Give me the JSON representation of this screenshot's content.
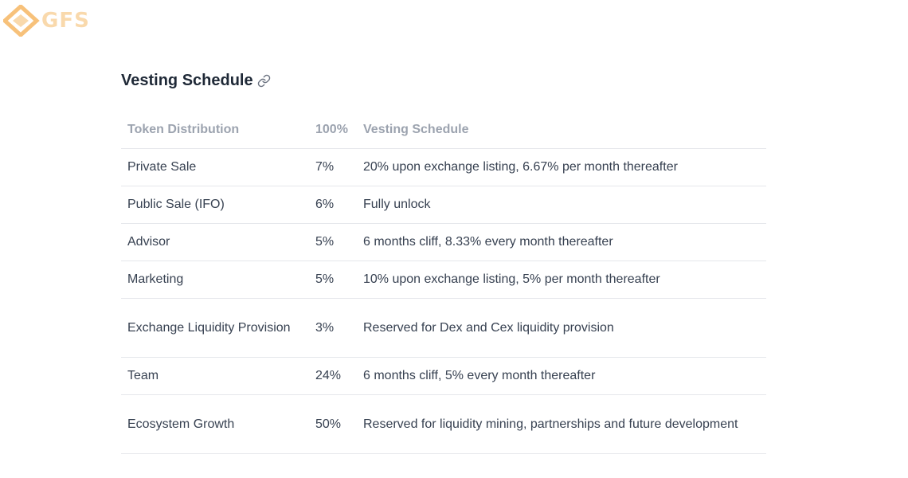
{
  "logo": {
    "text": "GFS",
    "colors": {
      "primary": "#f5a742",
      "light": "#f7c98a"
    }
  },
  "heading": {
    "title": "Vesting Schedule",
    "icon": "link-icon"
  },
  "table": {
    "headers": [
      "Token Distribution",
      "100%",
      "Vesting Schedule"
    ],
    "rows": [
      {
        "name": "Private Sale",
        "pct": "7%",
        "schedule": "20% upon exchange listing, 6.67% per month thereafter"
      },
      {
        "name": "Public Sale (IFO)",
        "pct": "6%",
        "schedule": "Fully unlock"
      },
      {
        "name": "Advisor",
        "pct": "5%",
        "schedule": "6 months cliff, 8.33% every month thereafter"
      },
      {
        "name": "Marketing",
        "pct": "5%",
        "schedule": "10% upon exchange listing, 5% per month thereafter"
      },
      {
        "name": "Exchange Liquidity Provision",
        "pct": "3%",
        "schedule": "Reserved for Dex and Cex liquidity provision"
      },
      {
        "name": "Team",
        "pct": "24%",
        "schedule": "6 months cliff, 5% every month thereafter"
      },
      {
        "name": "Ecosystem Growth",
        "pct": "50%",
        "schedule": "Reserved for liquidity mining, partnerships and future development"
      }
    ]
  }
}
